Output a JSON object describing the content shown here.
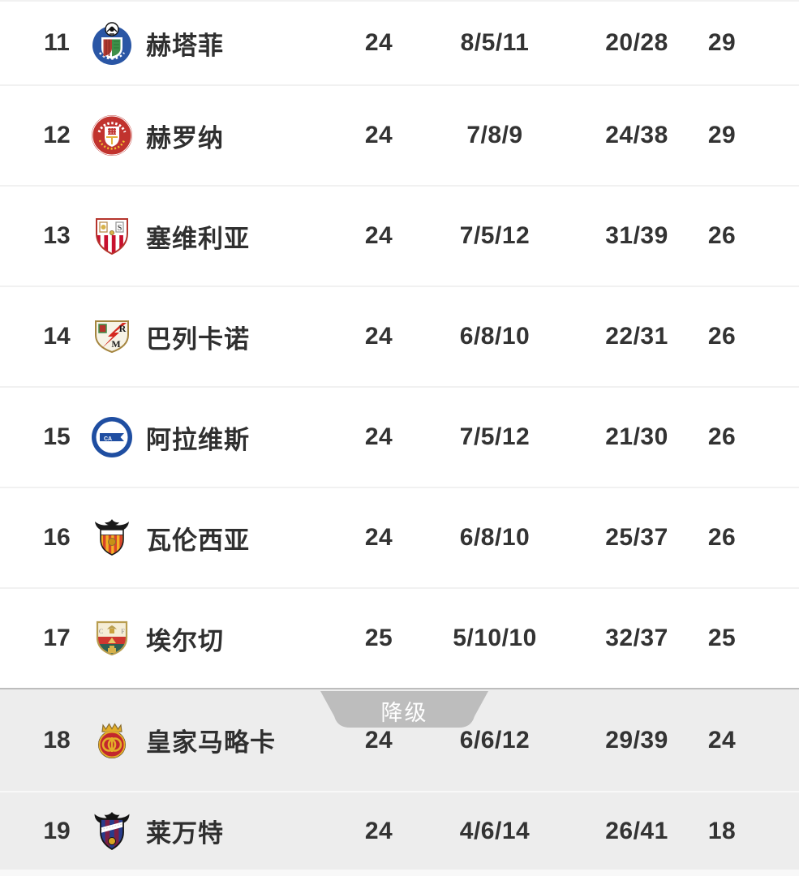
{
  "divider": {
    "label": "降级"
  },
  "colors": {
    "divider_gray": "#bdbdbd",
    "relegation_row_bg": "#ededed",
    "row_separator": "#f1f1f1",
    "text": "#333333"
  },
  "rows": [
    {
      "rank": "11",
      "team": "赫塔菲",
      "badge": "getafe",
      "played": "24",
      "wdl": "8/5/11",
      "goals": "20/28",
      "points": "29",
      "zone": "safe"
    },
    {
      "rank": "12",
      "team": "赫罗纳",
      "badge": "girona",
      "played": "24",
      "wdl": "7/8/9",
      "goals": "24/38",
      "points": "29",
      "zone": "safe"
    },
    {
      "rank": "13",
      "team": "塞维利亚",
      "badge": "sevilla",
      "played": "24",
      "wdl": "7/5/12",
      "goals": "31/39",
      "points": "26",
      "zone": "safe"
    },
    {
      "rank": "14",
      "team": "巴列卡诺",
      "badge": "rayo",
      "played": "24",
      "wdl": "6/8/10",
      "goals": "22/31",
      "points": "26",
      "zone": "safe"
    },
    {
      "rank": "15",
      "team": "阿拉维斯",
      "badge": "alaves",
      "played": "24",
      "wdl": "7/5/12",
      "goals": "21/30",
      "points": "26",
      "zone": "safe"
    },
    {
      "rank": "16",
      "team": "瓦伦西亚",
      "badge": "valencia",
      "played": "24",
      "wdl": "6/8/10",
      "goals": "25/37",
      "points": "26",
      "zone": "safe"
    },
    {
      "rank": "17",
      "team": "埃尔切",
      "badge": "elche",
      "played": "25",
      "wdl": "5/10/10",
      "goals": "32/37",
      "points": "25",
      "zone": "safe"
    },
    {
      "rank": "18",
      "team": "皇家马略卡",
      "badge": "mallorca",
      "played": "24",
      "wdl": "6/6/12",
      "goals": "29/39",
      "points": "24",
      "zone": "relegation"
    },
    {
      "rank": "19",
      "team": "莱万特",
      "badge": "levante",
      "played": "24",
      "wdl": "4/6/14",
      "goals": "26/41",
      "points": "18",
      "zone": "relegation"
    }
  ]
}
